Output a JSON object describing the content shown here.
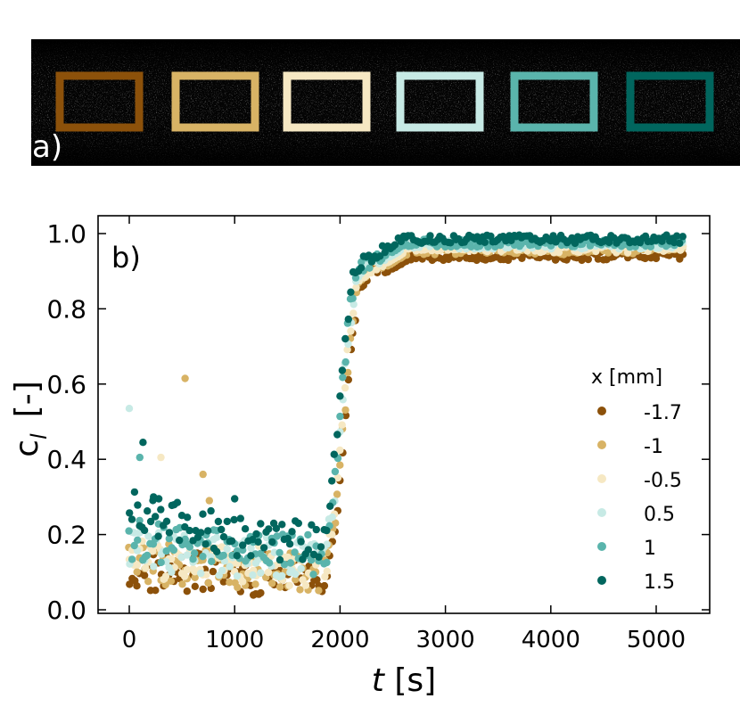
{
  "panel_a": {
    "label": "a)",
    "rect_colors": [
      "#8c510a",
      "#d8b365",
      "#f6e8c3",
      "#c7eae5",
      "#5ab4ac",
      "#01665e"
    ]
  },
  "chart_data": {
    "type": "scatter",
    "panel_label": "b)",
    "title": "",
    "xlabel_italic": "t",
    "xlabel_unit": " [s]",
    "ylabel_main": "c",
    "ylabel_sub": "l",
    "ylabel_unit": "[-]",
    "xlim": [
      -300,
      5500
    ],
    "ylim": [
      -0.02,
      1.04
    ],
    "xticks": [
      0,
      1000,
      2000,
      3000,
      4000,
      5000
    ],
    "yticks": [
      0.0,
      0.2,
      0.4,
      0.6,
      0.8,
      1.0
    ],
    "legend": {
      "title": "x [mm]",
      "position": "center-right"
    },
    "series": [
      {
        "name": "-1.7",
        "color": "#8c510a",
        "transition_mid": 2050,
        "plateau_start": 2650,
        "plateau": 0.94,
        "baseline": 0.1,
        "early_bump": 0.0,
        "outliers": []
      },
      {
        "name": "-1",
        "color": "#d8b365",
        "transition_mid": 2040,
        "plateau_start": 2640,
        "plateau": 0.955,
        "baseline": 0.11,
        "early_bump": 0.02,
        "outliers": [
          [
            530,
            0.615
          ],
          [
            700,
            0.36
          ],
          [
            760,
            0.29
          ]
        ]
      },
      {
        "name": "-0.5",
        "color": "#f6e8c3",
        "transition_mid": 2030,
        "plateau_start": 2620,
        "plateau": 0.96,
        "baseline": 0.12,
        "early_bump": 0.02,
        "outliers": [
          [
            300,
            0.405
          ]
        ]
      },
      {
        "name": "0.5",
        "color": "#c7eae5",
        "transition_mid": 2020,
        "plateau_start": 2600,
        "plateau": 0.97,
        "baseline": 0.14,
        "early_bump": 0.03,
        "outliers": [
          [
            0,
            0.535
          ]
        ]
      },
      {
        "name": "1",
        "color": "#5ab4ac",
        "transition_mid": 2010,
        "plateau_start": 2580,
        "plateau": 0.975,
        "baseline": 0.15,
        "early_bump": 0.04,
        "outliers": [
          [
            100,
            0.405
          ]
        ]
      },
      {
        "name": "1.5",
        "color": "#01665e",
        "transition_mid": 2000,
        "plateau_start": 2550,
        "plateau": 0.985,
        "baseline": 0.18,
        "early_bump": 0.1,
        "outliers": [
          [
            130,
            0.445
          ],
          [
            230,
            0.3
          ],
          [
            280,
            0.295
          ],
          [
            1000,
            0.295
          ]
        ]
      }
    ],
    "sampling": {
      "t_start": 0,
      "t_end": 5250,
      "dt": 25
    }
  }
}
